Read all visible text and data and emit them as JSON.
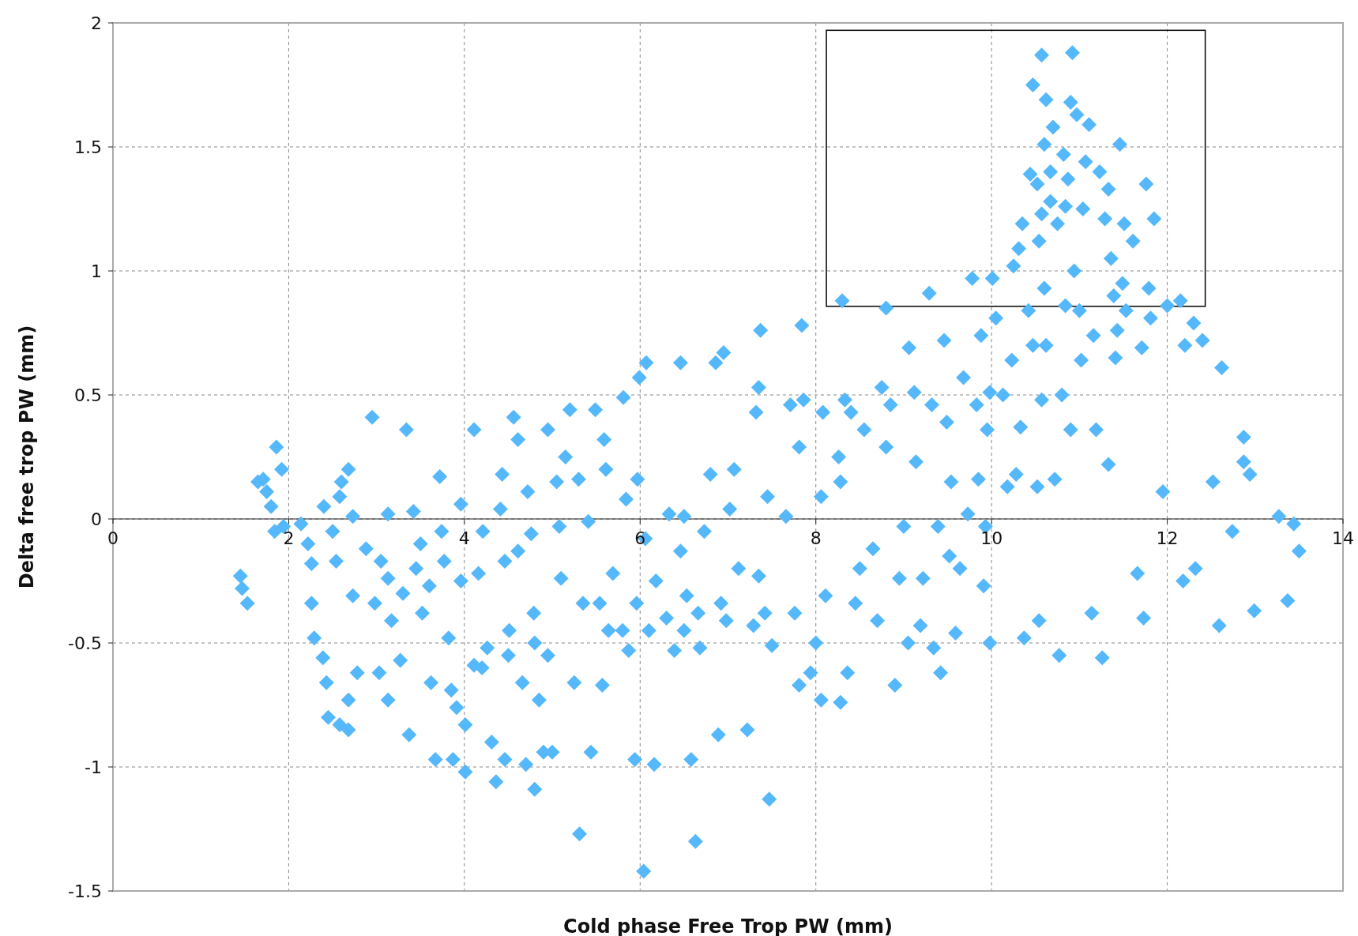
{
  "chart_data": {
    "type": "scatter",
    "xlabel": "Cold phase Free Trop PW (mm)",
    "ylabel": "Delta free trop PW (mm)",
    "xlim": [
      0,
      14
    ],
    "ylim": [
      -1.5,
      2
    ],
    "xticks": [
      0,
      2,
      4,
      6,
      8,
      10,
      12,
      14
    ],
    "yticks": [
      -1.5,
      -1,
      -0.5,
      0,
      0.5,
      1,
      1.5,
      2
    ],
    "grid": true,
    "marker": "diamond",
    "series": [
      {
        "color": "#55b8fb",
        "x": [
          1.45,
          1.47,
          1.53,
          1.65,
          1.71,
          1.75,
          1.86,
          1.92,
          1.8,
          1.84,
          1.94,
          2.14,
          2.22,
          2.26,
          2.26,
          2.29,
          2.39,
          2.43,
          2.45,
          2.58,
          2.68,
          2.68,
          2.78,
          2.73,
          2.54,
          2.58,
          2.68,
          2.73,
          2.95,
          2.88,
          2.98,
          3.05,
          3.13,
          3.13,
          3.17,
          3.03,
          3.13,
          3.27,
          3.34,
          3.37,
          3.42,
          3.45,
          3.52,
          3.62,
          3.67,
          3.72,
          3.74,
          3.77,
          3.82,
          3.85,
          3.87,
          3.91,
          3.96,
          3.96,
          4.01,
          4.01,
          4.11,
          4.11,
          4.16,
          4.21,
          4.26,
          4.31,
          4.36,
          4.41,
          4.43,
          4.46,
          4.46,
          4.51,
          4.56,
          4.61,
          4.61,
          4.66,
          4.7,
          4.72,
          4.76,
          4.79,
          4.8,
          4.85,
          4.9,
          4.95,
          4.95,
          5.0,
          5.05,
          5.08,
          5.1,
          5.15,
          5.2,
          5.25,
          5.3,
          5.31,
          5.35,
          5.41,
          5.44,
          5.49,
          5.54,
          5.57,
          5.59,
          5.61,
          5.64,
          5.69,
          5.81,
          5.84,
          5.87,
          5.94,
          5.96,
          5.97,
          5.99,
          6.04,
          6.06,
          6.07,
          6.1,
          6.16,
          6.18,
          6.33,
          6.39,
          6.46,
          6.46,
          6.5,
          6.53,
          6.58,
          6.63,
          6.66,
          6.68,
          6.73,
          6.8,
          6.86,
          6.89,
          6.92,
          6.95,
          6.98,
          7.02,
          7.07,
          7.12,
          7.22,
          7.29,
          7.32,
          7.35,
          7.35,
          7.37,
          7.42,
          7.45,
          7.47,
          7.5,
          7.66,
          7.71,
          7.76,
          7.81,
          7.81,
          7.84,
          7.86,
          7.94,
          8.0,
          8.06,
          8.06,
          8.08,
          8.11,
          8.26,
          8.28,
          8.28,
          8.3,
          8.33,
          8.36,
          8.4,
          8.45,
          8.5,
          8.55,
          8.65,
          8.7,
          8.75,
          8.8,
          8.8,
          8.85,
          8.9,
          8.95,
          9.0,
          9.05,
          9.06,
          9.12,
          9.14,
          9.19,
          9.22,
          9.29,
          9.32,
          9.34,
          9.39,
          9.42,
          9.46,
          9.49,
          9.52,
          9.54,
          9.59,
          9.64,
          9.68,
          9.73,
          9.78,
          9.83,
          9.85,
          9.88,
          9.91,
          9.93,
          9.95,
          9.98,
          9.98,
          10.01,
          10.05,
          10.13,
          10.18,
          10.23,
          10.25,
          10.28,
          10.31,
          10.33,
          10.35,
          10.37,
          10.42,
          10.44,
          10.47,
          10.52,
          10.47,
          10.52,
          10.54,
          10.54,
          10.57,
          10.57,
          10.57,
          10.6,
          10.6,
          10.62,
          10.62,
          10.67,
          10.67,
          10.7,
          10.72,
          10.75,
          10.77,
          10.8,
          10.82,
          10.84,
          10.84,
          10.87,
          10.9,
          10.9,
          10.92,
          10.94,
          10.97,
          11.0,
          11.02,
          11.04,
          11.07,
          11.11,
          11.14,
          11.16,
          11.19,
          11.23,
          11.26,
          11.29,
          11.33,
          11.33,
          11.36,
          11.39,
          11.41,
          11.43,
          11.46,
          11.49,
          11.51,
          11.53,
          11.61,
          11.66,
          11.71,
          11.73,
          11.76,
          11.79,
          11.81,
          11.85,
          11.95,
          12.0,
          12.15,
          12.18,
          12.2,
          12.3,
          12.32,
          12.4,
          12.52,
          12.59,
          12.62,
          12.74,
          12.87,
          12.87,
          12.94,
          12.99,
          13.27,
          13.37,
          13.44,
          13.5,
          2.4,
          2.6,
          2.5,
          3.5,
          3.6,
          3.3,
          5.8,
          4.5,
          4.8,
          6.3,
          6.5,
          4.2
        ],
        "values": [
          -0.23,
          -0.28,
          -0.34,
          0.15,
          0.16,
          0.11,
          0.29,
          0.2,
          0.05,
          -0.05,
          -0.03,
          -0.02,
          -0.1,
          -0.18,
          -0.34,
          -0.48,
          -0.56,
          -0.66,
          -0.8,
          -0.83,
          -0.85,
          -0.73,
          -0.62,
          -0.31,
          -0.17,
          0.09,
          0.2,
          0.01,
          0.41,
          -0.12,
          -0.34,
          -0.17,
          0.02,
          -0.24,
          -0.41,
          -0.62,
          -0.73,
          -0.57,
          0.36,
          -0.87,
          0.03,
          -0.2,
          -0.38,
          -0.66,
          -0.97,
          0.17,
          -0.05,
          -0.17,
          -0.48,
          -0.69,
          -0.97,
          -0.76,
          0.06,
          -0.25,
          -1.02,
          -0.83,
          0.36,
          -0.59,
          -0.22,
          -0.05,
          -0.52,
          -0.9,
          -1.06,
          0.04,
          0.18,
          -0.17,
          -0.97,
          -0.45,
          0.41,
          0.32,
          -0.13,
          -0.66,
          -0.99,
          0.11,
          -0.06,
          -0.38,
          -1.09,
          -0.73,
          -0.94,
          0.36,
          -0.55,
          -0.94,
          0.15,
          -0.03,
          -0.24,
          0.25,
          0.44,
          -0.66,
          0.16,
          -1.27,
          -0.34,
          -0.01,
          -0.94,
          0.44,
          -0.34,
          -0.67,
          0.32,
          0.2,
          -0.45,
          -0.22,
          0.49,
          0.08,
          -0.53,
          -0.97,
          -0.34,
          0.16,
          0.57,
          -1.42,
          -0.08,
          0.63,
          -0.45,
          -0.99,
          -0.25,
          0.02,
          -0.53,
          0.63,
          -0.13,
          0.01,
          -0.31,
          -0.97,
          -1.3,
          -0.38,
          -0.52,
          -0.05,
          0.18,
          0.63,
          -0.87,
          -0.34,
          0.67,
          -0.41,
          0.04,
          0.2,
          -0.2,
          -0.85,
          -0.43,
          0.43,
          0.53,
          -0.23,
          0.76,
          -0.38,
          0.09,
          -1.13,
          -0.51,
          0.01,
          0.46,
          -0.38,
          -0.67,
          0.29,
          0.78,
          0.48,
          -0.62,
          -0.5,
          -0.73,
          0.09,
          0.43,
          -0.31,
          0.25,
          -0.74,
          0.15,
          0.88,
          0.48,
          -0.62,
          0.43,
          -0.34,
          -0.2,
          0.36,
          -0.12,
          -0.41,
          0.53,
          0.29,
          0.85,
          0.46,
          -0.67,
          -0.24,
          -0.03,
          -0.5,
          0.69,
          0.51,
          0.23,
          -0.43,
          -0.24,
          0.91,
          0.46,
          -0.52,
          -0.03,
          -0.62,
          0.72,
          0.39,
          -0.15,
          0.15,
          -0.46,
          -0.2,
          0.57,
          0.02,
          0.97,
          0.46,
          0.16,
          0.74,
          -0.27,
          -0.03,
          0.36,
          -0.5,
          0.51,
          0.97,
          0.81,
          0.5,
          0.13,
          0.64,
          1.02,
          0.18,
          1.09,
          0.37,
          1.19,
          -0.48,
          0.84,
          1.39,
          0.7,
          1.35,
          1.75,
          0.13,
          -0.41,
          1.12,
          0.48,
          1.23,
          1.87,
          1.51,
          0.93,
          1.69,
          0.7,
          1.28,
          1.4,
          1.58,
          0.16,
          1.19,
          -0.55,
          0.5,
          1.47,
          1.26,
          0.86,
          1.37,
          1.68,
          0.36,
          1.88,
          1.0,
          1.63,
          0.84,
          0.64,
          1.25,
          1.44,
          1.59,
          -0.38,
          0.74,
          0.36,
          1.4,
          -0.56,
          1.21,
          0.22,
          1.33,
          1.05,
          0.9,
          0.65,
          0.76,
          1.51,
          0.95,
          1.19,
          0.84,
          1.12,
          -0.22,
          0.69,
          -0.4,
          1.35,
          0.93,
          0.81,
          1.21,
          0.11,
          0.86,
          0.88,
          -0.25,
          0.7,
          0.79,
          -0.2,
          0.72,
          0.15,
          -0.43,
          0.61,
          -0.05,
          0.33,
          0.23,
          0.18,
          -0.37,
          0.01,
          -0.33,
          -0.02,
          -0.13,
          0.05,
          0.15,
          -0.05,
          -0.1,
          -0.27,
          -0.3,
          -0.45,
          -0.55,
          -0.5,
          -0.4,
          -0.45,
          -0.6
        ]
      }
    ]
  }
}
